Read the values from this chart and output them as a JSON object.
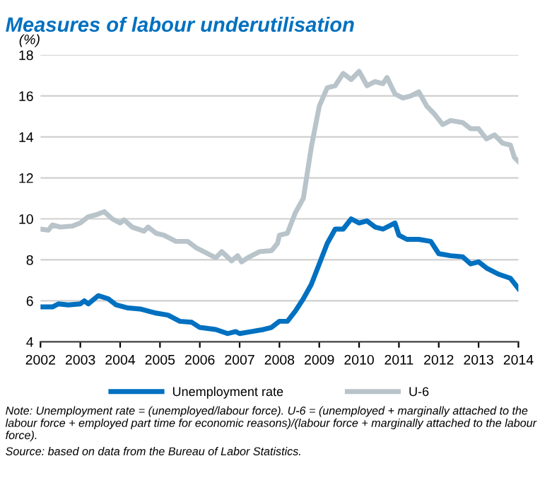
{
  "chart_data": {
    "type": "line",
    "title": "Measures of labour underutilisation",
    "ylabel": "(%)",
    "xlim": [
      2002,
      2014
    ],
    "xticks": [
      2002,
      2003,
      2004,
      2005,
      2006,
      2007,
      2008,
      2009,
      2010,
      2011,
      2012,
      2013,
      2014
    ],
    "ylim": [
      4,
      18
    ],
    "yticks": [
      4,
      6,
      8,
      10,
      12,
      14,
      16,
      18
    ],
    "grid": "y",
    "legend": "bottom",
    "line_style": "solid",
    "series": [
      {
        "name": "Unemployment rate",
        "color": "#0070c0",
        "x": [
          2002.0,
          2002.3,
          2002.45,
          2002.7,
          2003.0,
          2003.1,
          2003.2,
          2003.45,
          2003.7,
          2003.9,
          2004.2,
          2004.5,
          2004.9,
          2005.2,
          2005.5,
          2005.8,
          2006.0,
          2006.4,
          2006.7,
          2006.9,
          2007.0,
          2007.3,
          2007.6,
          2007.8,
          2008.0,
          2008.2,
          2008.4,
          2008.6,
          2008.8,
          2009.0,
          2009.2,
          2009.4,
          2009.6,
          2009.8,
          2010.0,
          2010.2,
          2010.4,
          2010.6,
          2010.9,
          2011.0,
          2011.2,
          2011.5,
          2011.8,
          2012.0,
          2012.3,
          2012.6,
          2012.8,
          2013.0,
          2013.2,
          2013.5,
          2013.8,
          2014.0
        ],
        "values": [
          5.7,
          5.7,
          5.85,
          5.8,
          5.85,
          6.0,
          5.85,
          6.25,
          6.1,
          5.8,
          5.65,
          5.6,
          5.4,
          5.3,
          5.0,
          4.95,
          4.7,
          4.6,
          4.4,
          4.5,
          4.4,
          4.5,
          4.6,
          4.7,
          5.0,
          5.0,
          5.5,
          6.1,
          6.8,
          7.8,
          8.8,
          9.5,
          9.5,
          10.0,
          9.8,
          9.9,
          9.6,
          9.5,
          9.8,
          9.2,
          9.0,
          9.0,
          8.9,
          8.3,
          8.2,
          8.15,
          7.8,
          7.9,
          7.6,
          7.3,
          7.1,
          6.6
        ]
      },
      {
        "name": "U-6",
        "color": "#b8c4ca",
        "x": [
          2002.0,
          2002.2,
          2002.3,
          2002.5,
          2002.8,
          2003.0,
          2003.2,
          2003.4,
          2003.6,
          2003.8,
          2004.0,
          2004.1,
          2004.3,
          2004.6,
          2004.7,
          2004.9,
          2005.1,
          2005.4,
          2005.7,
          2005.9,
          2006.2,
          2006.4,
          2006.55,
          2006.8,
          2006.95,
          2007.05,
          2007.2,
          2007.5,
          2007.8,
          2007.95,
          2008.0,
          2008.2,
          2008.4,
          2008.6,
          2008.8,
          2009.0,
          2009.2,
          2009.4,
          2009.6,
          2009.8,
          2010.0,
          2010.2,
          2010.4,
          2010.6,
          2010.7,
          2010.9,
          2011.1,
          2011.3,
          2011.5,
          2011.7,
          2011.9,
          2012.1,
          2012.3,
          2012.6,
          2012.8,
          2013.0,
          2013.2,
          2013.4,
          2013.6,
          2013.8,
          2013.9,
          2014.0
        ],
        "values": [
          9.5,
          9.45,
          9.7,
          9.6,
          9.65,
          9.8,
          10.1,
          10.2,
          10.35,
          10.0,
          9.8,
          9.95,
          9.6,
          9.4,
          9.6,
          9.3,
          9.2,
          8.9,
          8.9,
          8.6,
          8.3,
          8.1,
          8.4,
          7.95,
          8.2,
          7.9,
          8.1,
          8.4,
          8.45,
          8.8,
          9.2,
          9.3,
          10.3,
          11.0,
          13.5,
          15.5,
          16.4,
          16.5,
          17.1,
          16.8,
          17.2,
          16.5,
          16.7,
          16.6,
          16.9,
          16.1,
          15.9,
          16.0,
          16.2,
          15.5,
          15.1,
          14.6,
          14.8,
          14.7,
          14.4,
          14.4,
          13.9,
          14.1,
          13.7,
          13.6,
          13.0,
          12.8
        ]
      }
    ],
    "annotations": [
      "Note: Unemployment rate = (unemployed/labour force). U-6 = (unemployed + marginally attached to the labour force + employed part time for economic reasons)/(labour force + marginally attached to the labour force).",
      "Source: based on data from the Bureau of Labor Statistics."
    ]
  }
}
